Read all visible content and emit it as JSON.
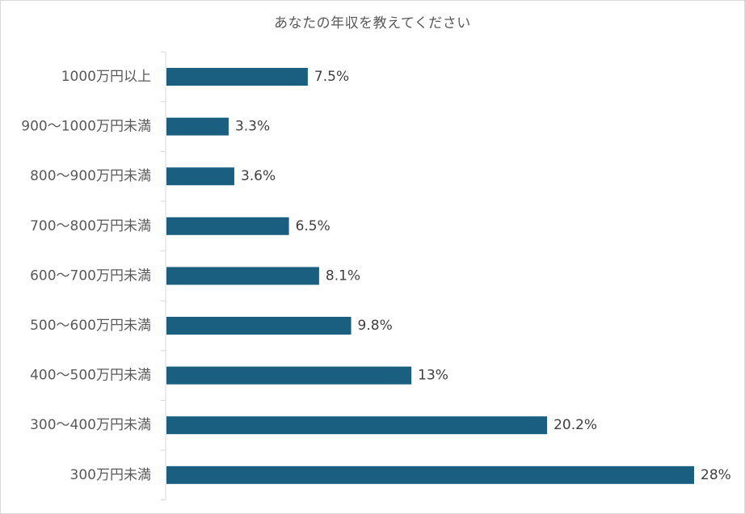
{
  "chart_data": {
    "type": "bar",
    "orientation": "horizontal",
    "title": "あなたの年収を教えてください",
    "categories": [
      "1000万円以上",
      "900〜1000万円未満",
      "800〜900万円未満",
      "700〜800万円未満",
      "600〜700万円未満",
      "500〜600万円未満",
      "400〜500万円未満",
      "300〜400万円未満",
      "300万円未満"
    ],
    "values": [
      7.5,
      3.3,
      3.6,
      6.5,
      8.1,
      9.8,
      13,
      20.2,
      28
    ],
    "value_labels": [
      "7.5%",
      "3.3%",
      "3.6%",
      "6.5%",
      "8.1%",
      "9.8%",
      "13%",
      "20.2%",
      "28%"
    ],
    "bar_color": "#1a5f80",
    "grid": false,
    "legend": "none"
  }
}
